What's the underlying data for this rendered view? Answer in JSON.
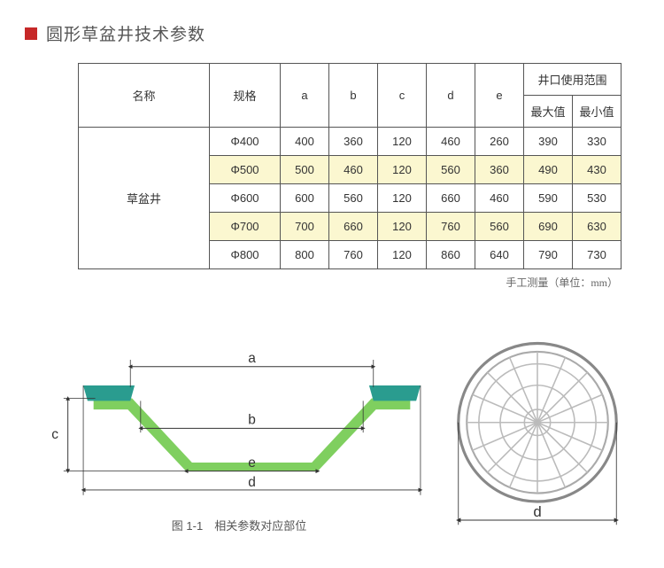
{
  "title": "圆形草盆井技术参数",
  "title_square_color": "#c62828",
  "table": {
    "headers": {
      "name": "名称",
      "spec": "规格",
      "a": "a",
      "b": "b",
      "c": "c",
      "d": "d",
      "e": "e",
      "range_group": "井口使用范围",
      "max": "最大值",
      "min": "最小值"
    },
    "row_name": "草盆井",
    "rows": [
      {
        "spec": "Φ400",
        "a": 400,
        "b": 360,
        "c": 120,
        "d": 460,
        "e": 260,
        "max": 390,
        "min": 330,
        "highlight": false
      },
      {
        "spec": "Φ500",
        "a": 500,
        "b": 460,
        "c": 120,
        "d": 560,
        "e": 360,
        "max": 490,
        "min": 430,
        "highlight": true
      },
      {
        "spec": "Φ600",
        "a": 600,
        "b": 560,
        "c": 120,
        "d": 660,
        "e": 460,
        "max": 590,
        "min": 530,
        "highlight": false
      },
      {
        "spec": "Φ700",
        "a": 700,
        "b": 660,
        "c": 120,
        "d": 760,
        "e": 560,
        "max": 690,
        "min": 630,
        "highlight": true
      },
      {
        "spec": "Φ800",
        "a": 800,
        "b": 760,
        "c": 120,
        "d": 860,
        "e": 640,
        "max": 790,
        "min": 730,
        "highlight": false
      }
    ],
    "caption_right": "手工测量（单位：mm）",
    "border_color": "#555555",
    "highlight_color": "#fbf7d0",
    "font_size": 13
  },
  "diagram": {
    "cross_section": {
      "labels": {
        "a": "a",
        "b": "b",
        "c": "c",
        "d": "d",
        "e": "e"
      },
      "rim_color": "#2a9c8f",
      "body_color": "#7fcf5f",
      "dim_line_color": "#333333",
      "caption": "图 1-1　相关参数对应部位"
    },
    "top_view": {
      "outer_stroke": "#888888",
      "inner_stroke": "#bbbbbb",
      "label": "d"
    }
  }
}
